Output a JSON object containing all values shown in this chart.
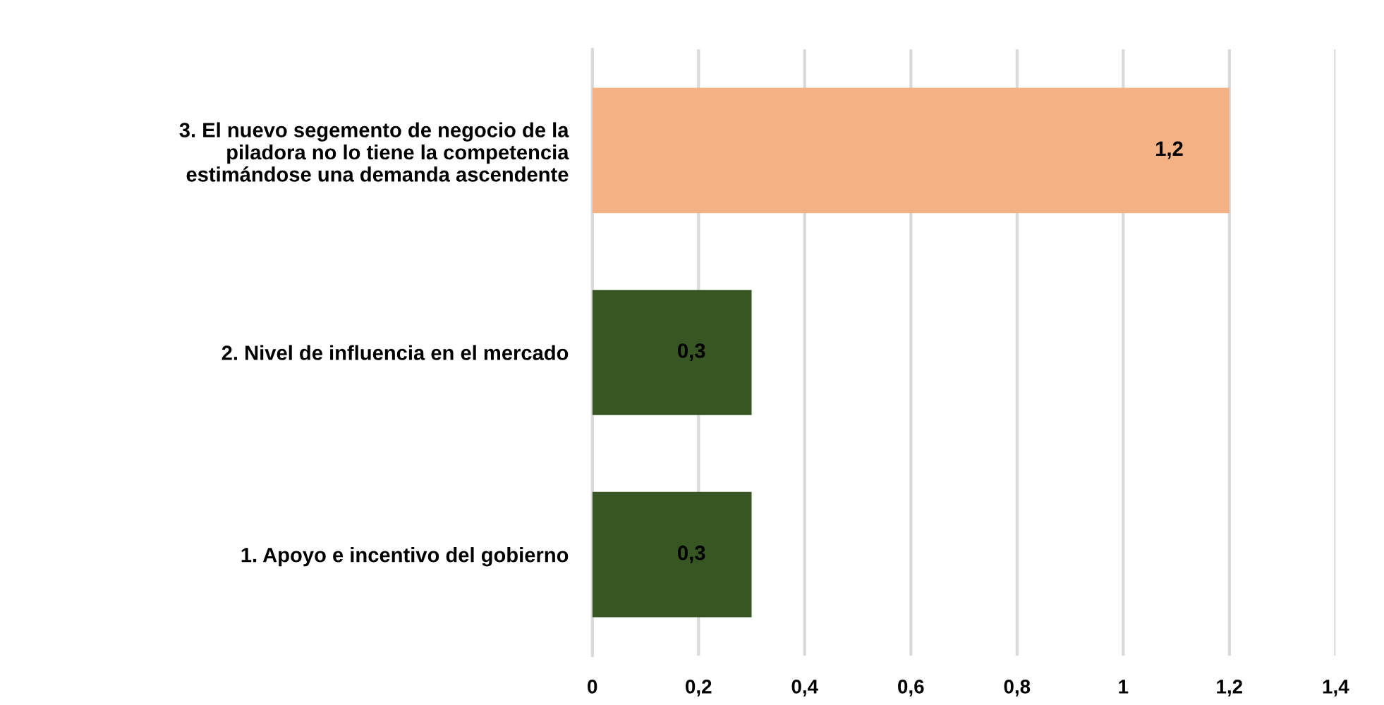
{
  "chart_data": {
    "type": "bar",
    "orientation": "horizontal",
    "categories": [
      "3. El nuevo segemento de negocio de la\npiladora no lo tiene la competencia\nestimándose una demanda ascendente",
      "2. Nivel de influencia en el mercado",
      "1. Apoyo e incentivo del gobierno"
    ],
    "values": [
      1.2,
      0.3,
      0.3
    ],
    "colors": [
      "#f4b183",
      "#375623",
      "#375623"
    ],
    "value_labels": [
      "1,2",
      "0,3",
      "0,3"
    ],
    "xlim": [
      0,
      1.4
    ],
    "xticks": [
      0,
      {
        "value": 0.2,
        "label": "0,2"
      },
      {
        "value": 0.4,
        "label": "0,4"
      },
      {
        "value": 0.6,
        "label": "0,6"
      },
      {
        "value": 0.8,
        "label": "0,8"
      },
      1,
      {
        "value": 1.2,
        "label": "1,2"
      },
      {
        "value": 1.4,
        "label": "1,4"
      }
    ],
    "grid": "x"
  }
}
